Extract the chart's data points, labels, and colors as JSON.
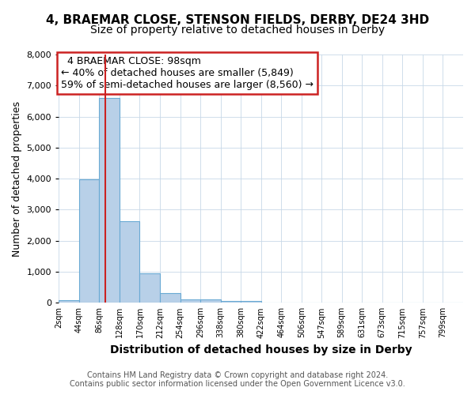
{
  "title_line1": "4, BRAEMAR CLOSE, STENSON FIELDS, DERBY, DE24 3HD",
  "title_line2": "Size of property relative to detached houses in Derby",
  "xlabel": "Distribution of detached houses by size in Derby",
  "ylabel": "Number of detached properties",
  "footnote_line1": "Contains HM Land Registry data © Crown copyright and database right 2024.",
  "footnote_line2": "Contains public sector information licensed under the Open Government Licence v3.0.",
  "annotation_line1": "4 BRAEMAR CLOSE: 98sqm",
  "annotation_line2": "← 40% of detached houses are smaller (5,849)",
  "annotation_line3": "59% of semi-detached houses are larger (8,560) →",
  "bar_edges": [
    2,
    44,
    86,
    128,
    170,
    212,
    254,
    296,
    338,
    380,
    422,
    464,
    506,
    547,
    589,
    631,
    673,
    715,
    757,
    799,
    841
  ],
  "bar_heights": [
    75,
    3980,
    6600,
    2620,
    960,
    320,
    120,
    100,
    60,
    50,
    0,
    0,
    0,
    0,
    0,
    0,
    0,
    0,
    0,
    0
  ],
  "bar_color": "#b8d0e8",
  "bar_edgecolor": "#6aaad4",
  "vline_color": "#cc2222",
  "vline_x": 98,
  "ylim": [
    0,
    8000
  ],
  "yticks": [
    0,
    1000,
    2000,
    3000,
    4000,
    5000,
    6000,
    7000,
    8000
  ],
  "bg_color": "#ffffff",
  "grid_color": "#c8d8e8",
  "annotation_box_edgecolor": "#cc2222",
  "annotation_box_facecolor": "#ffffff",
  "title1_fontsize": 11,
  "title2_fontsize": 10,
  "ylabel_fontsize": 9,
  "xlabel_fontsize": 10,
  "footnote_fontsize": 7,
  "annot_fontsize": 9
}
